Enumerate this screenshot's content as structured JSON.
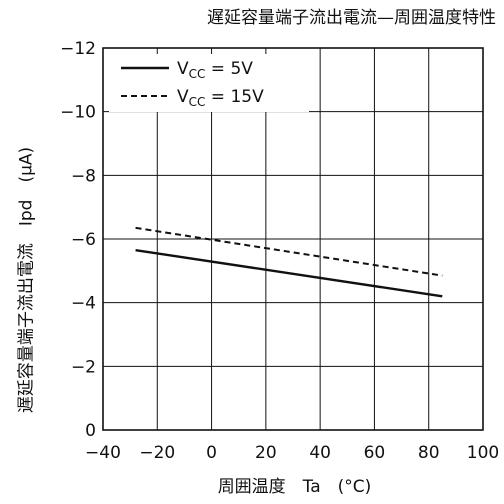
{
  "chart_data": {
    "type": "line",
    "title": "遅延容量端子流出電流—周囲温度特性",
    "xlabel": "周囲温度　Ta　(°C)",
    "ylabel": "遅延容量端子流出電流　Ipd　(μA)",
    "xlim": [
      -40,
      100
    ],
    "ylim": [
      -12,
      0
    ],
    "xticks": [
      -40,
      -20,
      0,
      20,
      40,
      60,
      80,
      100
    ],
    "yticks": [
      -12,
      -10,
      -8,
      -6,
      -4,
      -2,
      0
    ],
    "xtick_labels": [
      "−40",
      "−20",
      "0",
      "20",
      "40",
      "60",
      "80",
      "100"
    ],
    "ytick_labels": [
      "−12",
      "−10",
      "−8",
      "−6",
      "−4",
      "−2",
      "0"
    ],
    "grid": true,
    "legend_position": "top-left",
    "series": [
      {
        "legend_main": "V",
        "legend_sub": "CC",
        "legend_value": " = 5V",
        "style": "solid",
        "x": [
          -28,
          85
        ],
        "y": [
          -5.65,
          -4.2
        ]
      },
      {
        "legend_main": "V",
        "legend_sub": "CC",
        "legend_value": " = 15V",
        "style": "dashed",
        "x": [
          -28,
          85
        ],
        "y": [
          -6.35,
          -4.85
        ]
      }
    ]
  }
}
